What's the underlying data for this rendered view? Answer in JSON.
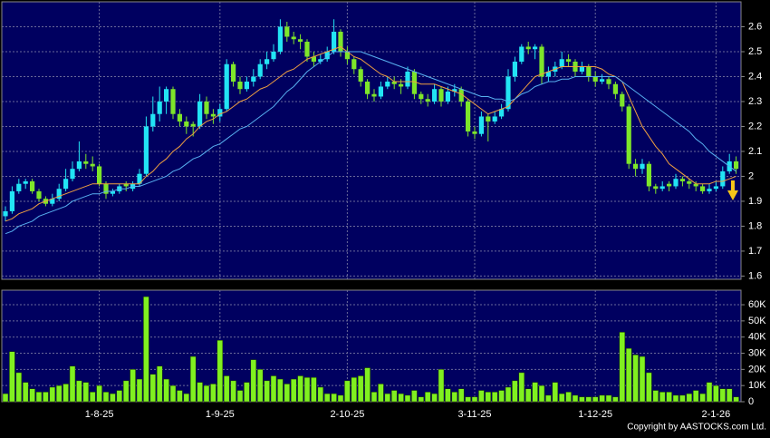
{
  "chart_data": [
    {
      "type": "candlestick",
      "up_color": "#22e4f4",
      "down_color": "#7ee62a",
      "ylim": [
        1.587,
        2.7
      ],
      "yticks": [
        1.6,
        1.7,
        1.8,
        1.9,
        2,
        2.1,
        2.2,
        2.3,
        2.4,
        2.5,
        2.6
      ],
      "grid": true,
      "ohlc": [
        [
          1.84,
          1.88,
          1.82,
          1.86
        ],
        [
          1.86,
          1.96,
          1.85,
          1.94
        ],
        [
          1.94,
          1.99,
          1.93,
          1.97
        ],
        [
          1.97,
          1.99,
          1.95,
          1.98
        ],
        [
          1.98,
          1.99,
          1.93,
          1.94
        ],
        [
          1.94,
          1.95,
          1.9,
          1.91
        ],
        [
          1.91,
          1.92,
          1.88,
          1.89
        ],
        [
          1.89,
          1.93,
          1.88,
          1.91
        ],
        [
          1.91,
          1.97,
          1.9,
          1.95
        ],
        [
          1.95,
          2.03,
          1.94,
          1.99
        ],
        [
          1.99,
          2.06,
          1.98,
          2.03
        ],
        [
          2.03,
          2.14,
          2.02,
          2.06
        ],
        [
          2.06,
          2.09,
          2.03,
          2.05
        ],
        [
          2.05,
          2.08,
          2.02,
          2.04
        ],
        [
          2.04,
          2.05,
          1.96,
          1.97
        ],
        [
          1.97,
          1.98,
          1.91,
          1.93
        ],
        [
          1.93,
          1.95,
          1.92,
          1.94
        ],
        [
          1.94,
          1.97,
          1.93,
          1.96
        ],
        [
          1.97,
          1.98,
          1.94,
          1.96
        ],
        [
          1.95,
          1.98,
          1.94,
          1.97
        ],
        [
          1.97,
          2.03,
          1.96,
          2.01
        ],
        [
          2.01,
          2.24,
          2.0,
          2.2
        ],
        [
          2.2,
          2.32,
          2.18,
          2.25
        ],
        [
          2.25,
          2.36,
          2.22,
          2.3
        ],
        [
          2.3,
          2.36,
          2.25,
          2.35
        ],
        [
          2.35,
          2.36,
          2.23,
          2.25
        ],
        [
          2.25,
          2.27,
          2.2,
          2.22
        ],
        [
          2.22,
          2.24,
          2.17,
          2.2
        ],
        [
          2.21,
          2.22,
          2.16,
          2.2
        ],
        [
          2.2,
          2.33,
          2.19,
          2.3
        ],
        [
          2.3,
          2.32,
          2.23,
          2.25
        ],
        [
          2.25,
          2.27,
          2.21,
          2.24
        ],
        [
          2.24,
          2.29,
          2.22,
          2.27
        ],
        [
          2.27,
          2.47,
          2.26,
          2.45
        ],
        [
          2.45,
          2.46,
          2.36,
          2.38
        ],
        [
          2.38,
          2.4,
          2.33,
          2.35
        ],
        [
          2.35,
          2.4,
          2.34,
          2.38
        ],
        [
          2.38,
          2.43,
          2.36,
          2.4
        ],
        [
          2.4,
          2.47,
          2.39,
          2.45
        ],
        [
          2.45,
          2.5,
          2.43,
          2.47
        ],
        [
          2.47,
          2.53,
          2.46,
          2.5
        ],
        [
          2.5,
          2.63,
          2.49,
          2.6
        ],
        [
          2.6,
          2.62,
          2.54,
          2.56
        ],
        [
          2.56,
          2.58,
          2.53,
          2.55
        ],
        [
          2.55,
          2.57,
          2.51,
          2.54
        ],
        [
          2.54,
          2.55,
          2.46,
          2.48
        ],
        [
          2.48,
          2.5,
          2.44,
          2.46
        ],
        [
          2.46,
          2.49,
          2.45,
          2.47
        ],
        [
          2.47,
          2.52,
          2.46,
          2.5
        ],
        [
          2.5,
          2.63,
          2.49,
          2.58
        ],
        [
          2.58,
          2.59,
          2.48,
          2.5
        ],
        [
          2.5,
          2.52,
          2.45,
          2.47
        ],
        [
          2.47,
          2.48,
          2.41,
          2.43
        ],
        [
          2.43,
          2.44,
          2.36,
          2.38
        ],
        [
          2.38,
          2.39,
          2.31,
          2.33
        ],
        [
          2.33,
          2.35,
          2.3,
          2.32
        ],
        [
          2.32,
          2.38,
          2.31,
          2.36
        ],
        [
          2.36,
          2.4,
          2.35,
          2.38
        ],
        [
          2.38,
          2.4,
          2.35,
          2.37
        ],
        [
          2.37,
          2.39,
          2.33,
          2.36
        ],
        [
          2.36,
          2.44,
          2.35,
          2.42
        ],
        [
          2.42,
          2.43,
          2.31,
          2.33
        ],
        [
          2.33,
          2.34,
          2.29,
          2.31
        ],
        [
          2.31,
          2.33,
          2.28,
          2.3
        ],
        [
          2.3,
          2.37,
          2.29,
          2.35
        ],
        [
          2.35,
          2.36,
          2.28,
          2.3
        ],
        [
          2.3,
          2.36,
          2.29,
          2.34
        ],
        [
          2.34,
          2.37,
          2.32,
          2.35
        ],
        [
          2.35,
          2.36,
          2.28,
          2.3
        ],
        [
          2.3,
          2.31,
          2.16,
          2.18
        ],
        [
          2.18,
          2.2,
          2.15,
          2.17
        ],
        [
          2.17,
          2.26,
          2.16,
          2.24
        ],
        [
          2.24,
          2.25,
          2.14,
          2.22
        ],
        [
          2.22,
          2.26,
          2.21,
          2.24
        ],
        [
          2.24,
          2.29,
          2.23,
          2.27
        ],
        [
          2.27,
          2.43,
          2.26,
          2.4
        ],
        [
          2.4,
          2.48,
          2.38,
          2.46
        ],
        [
          2.46,
          2.53,
          2.45,
          2.52
        ],
        [
          2.52,
          2.54,
          2.49,
          2.51
        ],
        [
          2.51,
          2.53,
          2.47,
          2.52
        ],
        [
          2.52,
          2.53,
          2.37,
          2.4
        ],
        [
          2.4,
          2.44,
          2.38,
          2.42
        ],
        [
          2.42,
          2.46,
          2.4,
          2.44
        ],
        [
          2.44,
          2.5,
          2.43,
          2.47
        ],
        [
          2.47,
          2.49,
          2.44,
          2.46
        ],
        [
          2.46,
          2.47,
          2.4,
          2.42
        ],
        [
          2.42,
          2.46,
          2.41,
          2.44
        ],
        [
          2.44,
          2.45,
          2.38,
          2.4
        ],
        [
          2.4,
          2.42,
          2.36,
          2.38
        ],
        [
          2.38,
          2.41,
          2.37,
          2.39
        ],
        [
          2.39,
          2.4,
          2.35,
          2.37
        ],
        [
          2.37,
          2.38,
          2.31,
          2.33
        ],
        [
          2.33,
          2.34,
          2.26,
          2.28
        ],
        [
          2.28,
          2.29,
          2.03,
          2.05
        ],
        [
          2.05,
          2.07,
          2.0,
          2.03
        ],
        [
          2.03,
          2.07,
          2.01,
          2.05
        ],
        [
          2.05,
          2.06,
          1.94,
          1.96
        ],
        [
          1.96,
          1.97,
          1.93,
          1.95
        ],
        [
          1.95,
          1.98,
          1.94,
          1.96
        ],
        [
          1.97,
          1.98,
          1.94,
          1.96
        ],
        [
          1.96,
          2.01,
          1.95,
          1.99
        ],
        [
          1.99,
          2.0,
          1.96,
          1.98
        ],
        [
          1.98,
          1.99,
          1.95,
          1.97
        ],
        [
          1.97,
          1.98,
          1.94,
          1.96
        ],
        [
          1.96,
          1.97,
          1.93,
          1.94
        ],
        [
          1.94,
          1.97,
          1.93,
          1.95
        ],
        [
          1.95,
          1.98,
          1.94,
          1.96
        ],
        [
          1.96,
          2.04,
          1.95,
          2.02
        ],
        [
          2.02,
          2.09,
          2.01,
          2.06
        ],
        [
          2.06,
          2.08,
          2.01,
          2.03
        ]
      ],
      "series": [
        {
          "color": "#f0a040",
          "values": [
            1.82,
            1.83,
            1.85,
            1.86,
            1.87,
            1.89,
            1.9,
            1.91,
            1.92,
            1.93,
            1.94,
            1.95,
            1.96,
            1.97,
            1.97,
            1.97,
            1.97,
            1.97,
            1.97,
            1.97,
            1.97,
            2.0,
            2.02,
            2.05,
            2.07,
            2.1,
            2.12,
            2.15,
            2.17,
            2.2,
            2.22,
            2.23,
            2.25,
            2.26,
            2.28,
            2.3,
            2.31,
            2.33,
            2.35,
            2.36,
            2.38,
            2.4,
            2.42,
            2.43,
            2.45,
            2.47,
            2.48,
            2.49,
            2.5,
            2.51,
            2.52,
            2.5,
            2.48,
            2.47,
            2.45,
            2.43,
            2.41,
            2.4,
            2.38,
            2.38,
            2.38,
            2.38,
            2.37,
            2.37,
            2.37,
            2.36,
            2.35,
            2.34,
            2.33,
            2.31,
            2.29,
            2.27,
            2.25,
            2.26,
            2.27,
            2.28,
            2.31,
            2.34,
            2.37,
            2.4,
            2.41,
            2.42,
            2.43,
            2.44,
            2.44,
            2.44,
            2.44,
            2.44,
            2.44,
            2.43,
            2.41,
            2.4,
            2.38,
            2.32,
            2.26,
            2.2,
            2.16,
            2.12,
            2.09,
            2.05,
            2.03,
            2.01,
            1.99,
            1.97,
            1.97,
            1.97,
            1.98,
            1.98,
            1.99,
            2.0
          ]
        },
        {
          "color": "#58b0f0",
          "values": [
            1.77,
            1.78,
            1.8,
            1.81,
            1.82,
            1.84,
            1.85,
            1.86,
            1.87,
            1.88,
            1.9,
            1.91,
            1.92,
            1.93,
            1.93,
            1.94,
            1.94,
            1.95,
            1.95,
            1.96,
            1.96,
            1.97,
            1.98,
            1.99,
            2.0,
            2.02,
            2.03,
            2.05,
            2.07,
            2.08,
            2.1,
            2.12,
            2.13,
            2.15,
            2.17,
            2.19,
            2.2,
            2.22,
            2.24,
            2.26,
            2.28,
            2.31,
            2.34,
            2.36,
            2.39,
            2.42,
            2.44,
            2.46,
            2.48,
            2.5,
            2.5,
            2.5,
            2.5,
            2.5,
            2.49,
            2.48,
            2.47,
            2.46,
            2.45,
            2.44,
            2.43,
            2.42,
            2.41,
            2.4,
            2.39,
            2.38,
            2.37,
            2.36,
            2.35,
            2.34,
            2.33,
            2.32,
            2.32,
            2.31,
            2.31,
            2.3,
            2.31,
            2.33,
            2.34,
            2.36,
            2.37,
            2.38,
            2.38,
            2.39,
            2.39,
            2.4,
            2.4,
            2.4,
            2.4,
            2.4,
            2.4,
            2.4,
            2.38,
            2.36,
            2.34,
            2.32,
            2.3,
            2.28,
            2.26,
            2.24,
            2.22,
            2.2,
            2.18,
            2.15,
            2.13,
            2.1,
            2.08,
            2.06,
            2.04,
            2.02
          ]
        }
      ]
    },
    {
      "type": "bar",
      "color": "#80f020",
      "ylim": [
        0,
        69000
      ],
      "yticks": [
        0,
        {
          "value": 10000,
          "label": "10K"
        },
        {
          "value": 20000,
          "label": "20K"
        },
        {
          "value": 30000,
          "label": "30K"
        },
        {
          "value": 40000,
          "label": "40K"
        },
        {
          "value": 50000,
          "label": "50K"
        },
        {
          "value": 60000,
          "label": "60K"
        }
      ],
      "grid": true,
      "categories": [
        null,
        null,
        null,
        null,
        null,
        null,
        null,
        null,
        null,
        null,
        null,
        null,
        null,
        null,
        "1-8-25",
        null,
        null,
        null,
        null,
        null,
        null,
        null,
        null,
        null,
        null,
        null,
        null,
        null,
        null,
        null,
        null,
        null,
        "1-9-25",
        null,
        null,
        null,
        null,
        null,
        null,
        null,
        null,
        null,
        null,
        null,
        null,
        null,
        null,
        null,
        null,
        null,
        null,
        "2-10-25",
        null,
        null,
        null,
        null,
        null,
        null,
        null,
        null,
        null,
        null,
        null,
        null,
        null,
        null,
        null,
        null,
        null,
        null,
        "3-11-25",
        null,
        null,
        null,
        null,
        null,
        null,
        null,
        null,
        null,
        null,
        null,
        null,
        null,
        null,
        null,
        null,
        null,
        "1-12-25",
        null,
        null,
        null,
        null,
        null,
        null,
        null,
        null,
        null,
        null,
        null,
        null,
        null,
        null,
        null,
        null,
        null,
        "2-1-26",
        null,
        null,
        null
      ],
      "values": [
        5000,
        31000,
        18000,
        12000,
        8000,
        6000,
        6000,
        9000,
        10000,
        11000,
        22000,
        13000,
        12000,
        6000,
        10000,
        6000,
        5000,
        7000,
        13000,
        20000,
        14000,
        65000,
        17000,
        22000,
        14000,
        10000,
        7000,
        5000,
        28000,
        12000,
        10000,
        11000,
        38000,
        16000,
        13000,
        7000,
        12000,
        26000,
        20000,
        13000,
        16000,
        14000,
        11000,
        14000,
        16000,
        15000,
        15000,
        9000,
        5000,
        5000,
        4000,
        13000,
        15000,
        16000,
        21000,
        6000,
        11000,
        5000,
        7000,
        5000,
        4000,
        7000,
        3000,
        6000,
        5000,
        20000,
        8000,
        6000,
        8000,
        3000,
        3000,
        7000,
        6000,
        6000,
        7000,
        9000,
        13000,
        18000,
        8000,
        12000,
        10000,
        4000,
        12000,
        5000,
        6000,
        4000,
        3000,
        3000,
        3000,
        4000,
        4000,
        3000,
        43000,
        33000,
        29000,
        28000,
        18000,
        7000,
        6000,
        6000,
        4000,
        4000,
        5000,
        7000,
        5000,
        12000,
        10000,
        8000,
        8000,
        3000
      ]
    },
    {
      "type": "note",
      "copyright": "Copyright by AASTOCKS.com Ltd."
    }
  ]
}
